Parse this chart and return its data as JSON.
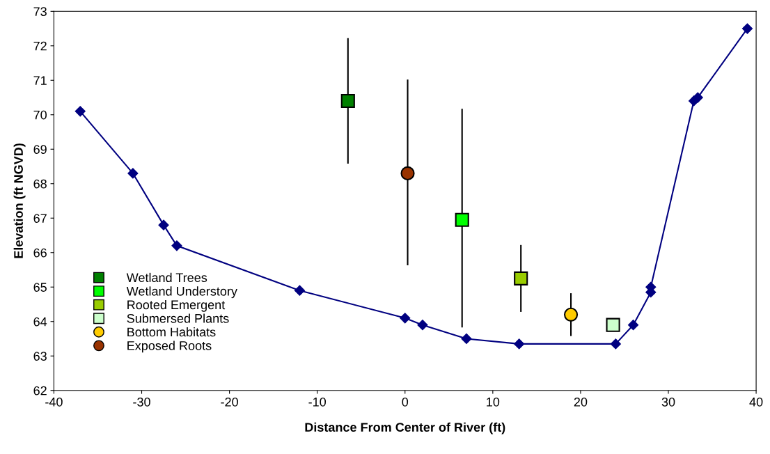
{
  "chart_data": {
    "type": "scatter",
    "xlabel": "Distance From Center of River (ft)",
    "ylabel": "Elevation (ft NGVD)",
    "xlim": [
      -40,
      40
    ],
    "xticks": [
      -40,
      -30,
      -20,
      -10,
      0,
      10,
      20,
      30,
      40
    ],
    "ylim": [
      62,
      73
    ],
    "yticks": [
      62,
      63,
      64,
      65,
      66,
      67,
      68,
      69,
      70,
      71,
      72,
      73
    ],
    "grid": false,
    "legend": "lower left",
    "series": [
      {
        "type": "line",
        "color": "#000080",
        "marker": "diamond",
        "line_style": "solid",
        "x": [
          -37,
          -31,
          -27.5,
          -26,
          -12,
          0,
          2,
          7,
          13,
          24,
          26,
          28,
          28,
          32.9,
          33.35,
          39
        ],
        "values": [
          70.1,
          68.3,
          66.8,
          66.2,
          64.9,
          64.1,
          63.9,
          63.5,
          63.35,
          63.35,
          63.9,
          64.85,
          65.0,
          70.4,
          70.5,
          72.5
        ]
      },
      {
        "name": "Wetland Trees",
        "color": "#008000",
        "marker": "square",
        "x": [
          -6.5
        ],
        "values": [
          70.4
        ],
        "errors": [
          [
            68.6,
            72.2
          ]
        ]
      },
      {
        "name": "Wetland Understory",
        "color": "#00ff00",
        "marker": "square",
        "x": [
          6.5
        ],
        "values": [
          66.95
        ],
        "errors": [
          [
            63.85,
            70.15
          ]
        ]
      },
      {
        "name": "Rooted Emergent",
        "color": "#99cc00",
        "marker": "square",
        "x": [
          13.2
        ],
        "values": [
          65.25
        ],
        "errors": [
          [
            64.3,
            66.2
          ]
        ]
      },
      {
        "name": "Submersed Plants",
        "color": "#ccffcc",
        "marker": "square",
        "x": [
          23.7
        ],
        "values": [
          63.9
        ]
      },
      {
        "name": "Bottom Habitats",
        "color": "#ffcc00",
        "marker": "circle",
        "x": [
          18.9
        ],
        "values": [
          64.2
        ],
        "errors": [
          [
            63.6,
            64.8
          ]
        ]
      },
      {
        "name": "Exposed Roots",
        "color": "#993300",
        "marker": "circle",
        "x": [
          0.3
        ],
        "values": [
          68.3
        ],
        "errors": [
          [
            65.65,
            71.0
          ]
        ]
      }
    ]
  }
}
